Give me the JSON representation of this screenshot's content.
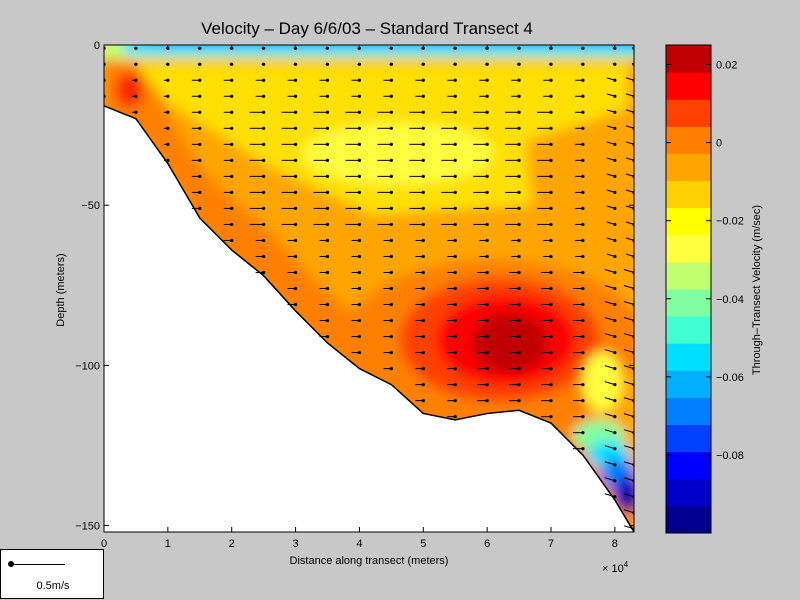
{
  "chart_data": {
    "type": "heatmap",
    "subtype": "filled-contour with velocity vectors",
    "title": "Velocity – Day 6/6/03 – Standard Transect 4",
    "xlabel": "Distance along transect (meters)",
    "ylabel": "Depth (meters)",
    "x_exponent_label": "× 10",
    "x_exponent": "4",
    "xlim": [
      0,
      8.3
    ],
    "ylim": [
      -152,
      0
    ],
    "x_ticks": [
      0,
      1,
      2,
      3,
      4,
      5,
      6,
      7,
      8
    ],
    "y_ticks": [
      0,
      -50,
      -100,
      -150
    ],
    "colorbar": {
      "label": "Through–Transect Velocity (m/sec)",
      "range": [
        -0.1,
        0.025
      ],
      "ticks": [
        {
          "value": 0.02,
          "label": "0.02"
        },
        {
          "value": 0.0,
          "label": "0"
        },
        {
          "value": -0.02,
          "label": "−0.02"
        },
        {
          "value": -0.04,
          "label": "−0.04"
        },
        {
          "value": -0.06,
          "label": "−0.06"
        },
        {
          "value": -0.08,
          "label": "−0.08"
        }
      ],
      "levels": [
        "#00008f",
        "#0000c8",
        "#0000ff",
        "#0040ff",
        "#0080ff",
        "#00b0ff",
        "#00dfff",
        "#40ffd0",
        "#80ffa0",
        "#c0ff70",
        "#ffff40",
        "#ffff00",
        "#ffd000",
        "#ffa500",
        "#ff8000",
        "#ff4000",
        "#ff0000",
        "#c00000"
      ]
    },
    "bottom_profile": [
      {
        "x": 0.0,
        "depth": 19
      },
      {
        "x": 0.5,
        "depth": 23
      },
      {
        "x": 1.0,
        "depth": 37
      },
      {
        "x": 1.5,
        "depth": 54
      },
      {
        "x": 2.0,
        "depth": 64
      },
      {
        "x": 2.5,
        "depth": 72
      },
      {
        "x": 3.0,
        "depth": 83
      },
      {
        "x": 3.5,
        "depth": 93
      },
      {
        "x": 4.0,
        "depth": 101
      },
      {
        "x": 4.5,
        "depth": 106
      },
      {
        "x": 5.0,
        "depth": 115
      },
      {
        "x": 5.5,
        "depth": 117
      },
      {
        "x": 6.0,
        "depth": 115
      },
      {
        "x": 6.5,
        "depth": 114
      },
      {
        "x": 7.0,
        "depth": 118
      },
      {
        "x": 7.5,
        "depth": 128
      },
      {
        "x": 8.0,
        "depth": 142
      },
      {
        "x": 8.3,
        "depth": 152
      }
    ],
    "contour_regions": [
      {
        "level": "yellow",
        "cx": 5.2,
        "cy": -37,
        "rx": 2.3,
        "ry": 16,
        "velocity": -0.02
      },
      {
        "level": "red",
        "cx": 6.4,
        "cy": -91,
        "rx": 0.9,
        "ry": 17,
        "velocity": 0.018
      },
      {
        "level": "dark-red",
        "cx": 6.3,
        "cy": -93,
        "rx": 0.5,
        "ry": 10,
        "velocity": 0.022
      },
      {
        "level": "blue",
        "cx": 8.15,
        "cy": -138,
        "rx": 0.3,
        "ry": 12,
        "velocity": -0.09
      }
    ],
    "vector_scale": {
      "label": "0.5m/s",
      "value": 0.5
    }
  }
}
